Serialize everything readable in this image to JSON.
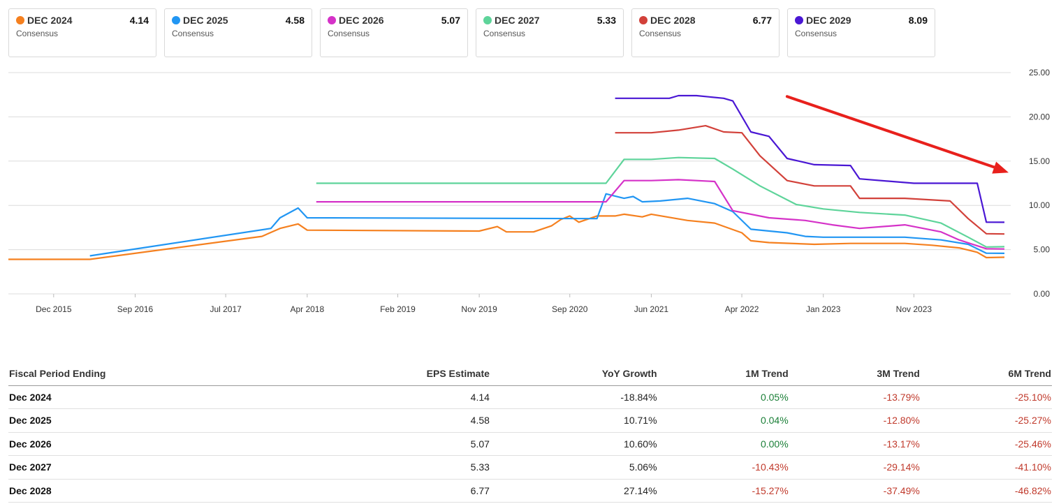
{
  "legend": [
    {
      "label": "DEC 2024",
      "value": "4.14",
      "sub": "Consensus",
      "color": "#f5801f"
    },
    {
      "label": "DEC 2025",
      "value": "4.58",
      "sub": "Consensus",
      "color": "#2196f3"
    },
    {
      "label": "DEC 2026",
      "value": "5.07",
      "sub": "Consensus",
      "color": "#d532c8"
    },
    {
      "label": "DEC 2027",
      "value": "5.33",
      "sub": "Consensus",
      "color": "#5ed49a"
    },
    {
      "label": "DEC 2028",
      "value": "6.77",
      "sub": "Consensus",
      "color": "#d2413a"
    },
    {
      "label": "DEC 2029",
      "value": "8.09",
      "sub": "Consensus",
      "color": "#4a17d4"
    }
  ],
  "chart_data": {
    "type": "line",
    "x_ticks": [
      "Dec 2015",
      "Sep 2016",
      "Jul 2017",
      "Apr 2018",
      "Feb 2019",
      "Nov 2019",
      "Sep 2020",
      "Jun 2021",
      "Apr 2022",
      "Jan 2023",
      "Nov 2023"
    ],
    "y_ticks": [
      "0.00",
      "5.00",
      "10.00",
      "15.00",
      "20.00",
      "25.00"
    ],
    "ylim": [
      0,
      25
    ],
    "xlim": [
      "2015-07",
      "2024-09"
    ],
    "grid": true,
    "trend_arrow_color": "#e8201c",
    "series": [
      {
        "name": "DEC 2024",
        "color": "#f5801f",
        "points": [
          [
            "2015-07",
            3.9
          ],
          [
            "2016-04",
            3.9
          ],
          [
            "2017-11",
            6.5
          ],
          [
            "2018-01",
            7.4
          ],
          [
            "2018-03",
            7.9
          ],
          [
            "2018-04",
            7.2
          ],
          [
            "2019-11",
            7.1
          ],
          [
            "2020-01",
            7.6
          ],
          [
            "2020-02",
            7.0
          ],
          [
            "2020-05",
            7.0
          ],
          [
            "2020-07",
            7.7
          ],
          [
            "2020-08",
            8.4
          ],
          [
            "2020-09",
            8.8
          ],
          [
            "2020-10",
            8.1
          ],
          [
            "2020-12",
            8.8
          ],
          [
            "2021-02",
            8.8
          ],
          [
            "2021-03",
            9.0
          ],
          [
            "2021-05",
            8.7
          ],
          [
            "2021-06",
            9.0
          ],
          [
            "2021-10",
            8.3
          ],
          [
            "2022-01",
            8.0
          ],
          [
            "2022-04",
            6.9
          ],
          [
            "2022-05",
            6.0
          ],
          [
            "2022-07",
            5.8
          ],
          [
            "2022-12",
            5.6
          ],
          [
            "2023-04",
            5.7
          ],
          [
            "2023-10",
            5.7
          ],
          [
            "2024-01",
            5.5
          ],
          [
            "2024-04",
            5.2
          ],
          [
            "2024-06",
            4.7
          ],
          [
            "2024-07",
            4.1
          ],
          [
            "2024-09",
            4.14
          ]
        ]
      },
      {
        "name": "DEC 2025",
        "color": "#2196f3",
        "points": [
          [
            "2016-04",
            4.3
          ],
          [
            "2017-12",
            7.4
          ],
          [
            "2018-01",
            8.6
          ],
          [
            "2018-03",
            9.7
          ],
          [
            "2018-04",
            8.6
          ],
          [
            "2020-12",
            8.5
          ],
          [
            "2021-01",
            11.3
          ],
          [
            "2021-03",
            10.8
          ],
          [
            "2021-04",
            11.0
          ],
          [
            "2021-05",
            10.4
          ],
          [
            "2021-07",
            10.5
          ],
          [
            "2021-10",
            10.8
          ],
          [
            "2022-01",
            10.2
          ],
          [
            "2022-03",
            9.3
          ],
          [
            "2022-05",
            7.3
          ],
          [
            "2022-09",
            6.9
          ],
          [
            "2022-11",
            6.5
          ],
          [
            "2023-01",
            6.4
          ],
          [
            "2023-10",
            6.4
          ],
          [
            "2024-02",
            6.1
          ],
          [
            "2024-05",
            5.6
          ],
          [
            "2024-07",
            4.6
          ],
          [
            "2024-09",
            4.58
          ]
        ]
      },
      {
        "name": "DEC 2026",
        "color": "#d532c8",
        "points": [
          [
            "2018-05",
            10.4
          ],
          [
            "2021-01",
            10.4
          ],
          [
            "2021-03",
            12.8
          ],
          [
            "2021-06",
            12.8
          ],
          [
            "2021-09",
            12.9
          ],
          [
            "2022-01",
            12.7
          ],
          [
            "2022-03",
            9.4
          ],
          [
            "2022-07",
            8.6
          ],
          [
            "2022-11",
            8.3
          ],
          [
            "2023-02",
            7.8
          ],
          [
            "2023-05",
            7.4
          ],
          [
            "2023-10",
            7.8
          ],
          [
            "2024-02",
            7.0
          ],
          [
            "2024-04",
            6.1
          ],
          [
            "2024-07",
            5.1
          ],
          [
            "2024-09",
            5.07
          ]
        ]
      },
      {
        "name": "DEC 2027",
        "color": "#5ed49a",
        "points": [
          [
            "2018-05",
            12.5
          ],
          [
            "2021-01",
            12.5
          ],
          [
            "2021-03",
            15.2
          ],
          [
            "2021-06",
            15.2
          ],
          [
            "2021-09",
            15.4
          ],
          [
            "2022-01",
            15.3
          ],
          [
            "2022-03",
            14.1
          ],
          [
            "2022-06",
            12.2
          ],
          [
            "2022-10",
            10.1
          ],
          [
            "2023-01",
            9.6
          ],
          [
            "2023-05",
            9.2
          ],
          [
            "2023-10",
            8.9
          ],
          [
            "2024-02",
            8.0
          ],
          [
            "2024-05",
            6.4
          ],
          [
            "2024-07",
            5.3
          ],
          [
            "2024-09",
            5.33
          ]
        ]
      },
      {
        "name": "DEC 2028",
        "color": "#d2413a",
        "points": [
          [
            "2021-02",
            18.2
          ],
          [
            "2021-06",
            18.2
          ],
          [
            "2021-09",
            18.5
          ],
          [
            "2021-12",
            19.0
          ],
          [
            "2022-02",
            18.3
          ],
          [
            "2022-04",
            18.2
          ],
          [
            "2022-06",
            15.6
          ],
          [
            "2022-09",
            12.8
          ],
          [
            "2022-12",
            12.2
          ],
          [
            "2023-04",
            12.2
          ],
          [
            "2023-05",
            10.8
          ],
          [
            "2023-10",
            10.8
          ],
          [
            "2024-03",
            10.5
          ],
          [
            "2024-05",
            8.5
          ],
          [
            "2024-07",
            6.8
          ],
          [
            "2024-09",
            6.77
          ]
        ]
      },
      {
        "name": "DEC 2029",
        "color": "#4a17d4",
        "points": [
          [
            "2021-02",
            22.1
          ],
          [
            "2021-08",
            22.1
          ],
          [
            "2021-09",
            22.4
          ],
          [
            "2021-11",
            22.4
          ],
          [
            "2022-02",
            22.1
          ],
          [
            "2022-03",
            21.8
          ],
          [
            "2022-05",
            18.3
          ],
          [
            "2022-07",
            17.8
          ],
          [
            "2022-09",
            15.3
          ],
          [
            "2022-12",
            14.6
          ],
          [
            "2023-04",
            14.5
          ],
          [
            "2023-05",
            13.0
          ],
          [
            "2023-11",
            12.5
          ],
          [
            "2024-06",
            12.5
          ],
          [
            "2024-07",
            8.1
          ],
          [
            "2024-09",
            8.09
          ]
        ]
      }
    ]
  },
  "table": {
    "headers": [
      "Fiscal Period Ending",
      "EPS Estimate",
      "YoY Growth",
      "1M Trend",
      "3M Trend",
      "6M Trend"
    ],
    "rows": [
      [
        "Dec 2024",
        "4.14",
        "-18.84%",
        "0.05%",
        "-13.79%",
        "-25.10%"
      ],
      [
        "Dec 2025",
        "4.58",
        "10.71%",
        "0.04%",
        "-12.80%",
        "-25.27%"
      ],
      [
        "Dec 2026",
        "5.07",
        "10.60%",
        "0.00%",
        "-13.17%",
        "-25.46%"
      ],
      [
        "Dec 2027",
        "5.33",
        "5.06%",
        "-10.43%",
        "-29.14%",
        "-41.10%"
      ],
      [
        "Dec 2028",
        "6.77",
        "27.14%",
        "-15.27%",
        "-37.49%",
        "-46.82%"
      ]
    ]
  }
}
